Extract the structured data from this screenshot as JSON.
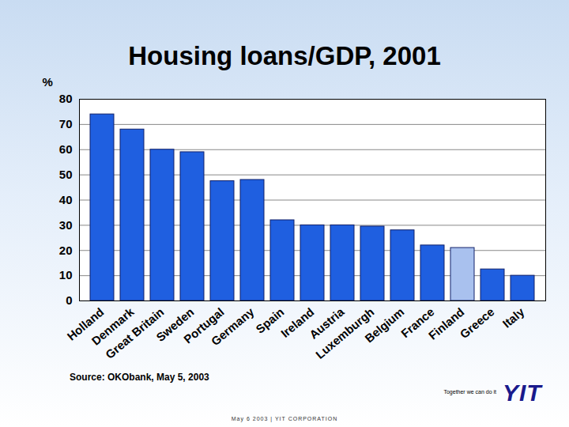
{
  "chart_data": {
    "type": "bar",
    "title": "Housing loans/GDP, 2001",
    "ylabel": "%",
    "categories": [
      "Holland",
      "Denmark",
      "Great Britain",
      "Sweden",
      "Portugal",
      "Germany",
      "Spain",
      "Ireland",
      "Austria",
      "Luxemburgh",
      "Belgium",
      "France",
      "Finland",
      "Greece",
      "Italy"
    ],
    "values": [
      74,
      68,
      60,
      59,
      47.5,
      48,
      32,
      30,
      30,
      29.5,
      28,
      22,
      21,
      12.5,
      10
    ],
    "colors": [
      "#1f5fe0",
      "#1f5fe0",
      "#1f5fe0",
      "#1f5fe0",
      "#1f5fe0",
      "#1f5fe0",
      "#1f5fe0",
      "#1f5fe0",
      "#1f5fe0",
      "#1f5fe0",
      "#1f5fe0",
      "#1f5fe0",
      "#a9c1ee",
      "#1f5fe0",
      "#1f5fe0"
    ],
    "ylim": [
      0,
      80
    ],
    "yticks": [
      0,
      10,
      20,
      30,
      40,
      50,
      60,
      70,
      80
    ],
    "grid": true
  },
  "source": "Source: OKObank, May 5, 2003",
  "footer": "Together we can do it",
  "logo": "YIT",
  "dateline": "May 6 2003 | YIT CORPORATION"
}
